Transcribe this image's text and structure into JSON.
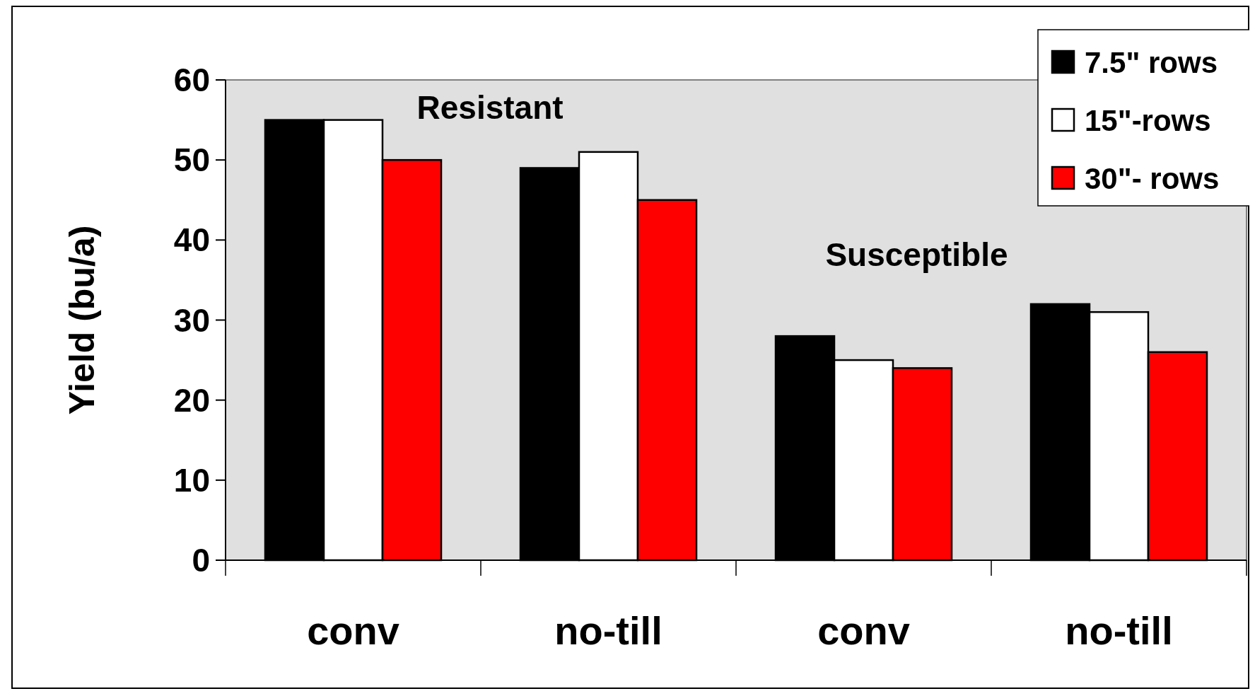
{
  "chart_data": {
    "type": "bar",
    "ylabel": "Yield (bu/a)",
    "categories": [
      "conv",
      "no-till",
      "conv",
      "no-till"
    ],
    "series": [
      {
        "name": "7.5\" rows",
        "color": "#000000",
        "values": [
          55,
          49,
          28,
          32
        ]
      },
      {
        "name": "15\"-rows",
        "color": "#ffffff",
        "values": [
          55,
          51,
          25,
          31
        ]
      },
      {
        "name": "30\"- rows",
        "color": "#ff0000",
        "values": [
          50,
          45,
          24,
          26
        ]
      }
    ],
    "ylim": [
      0,
      60
    ],
    "yticks": [
      0,
      10,
      20,
      30,
      40,
      50,
      60
    ],
    "grid": false,
    "legend": "top right",
    "annotations": [
      "Resistant",
      "Susceptible"
    ]
  }
}
